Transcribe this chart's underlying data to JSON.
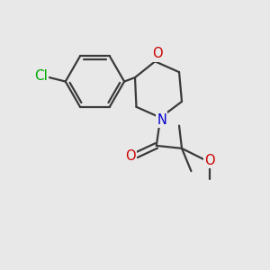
{
  "background_color": "#e8e8e8",
  "bond_color": "#3a3a3a",
  "bond_width": 1.6,
  "atom_colors": {
    "Cl": "#00aa00",
    "O": "#cc0000",
    "N": "#0000cc"
  },
  "font_size": 10.5,
  "figsize": [
    3.0,
    3.0
  ],
  "dpi": 100
}
